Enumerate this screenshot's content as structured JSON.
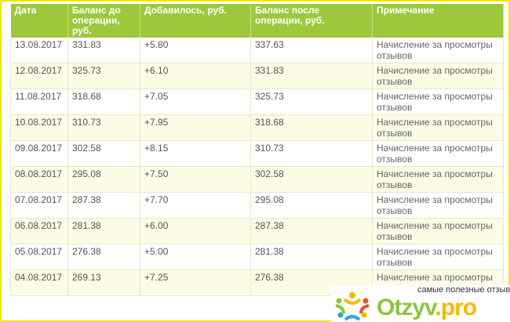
{
  "table": {
    "headers": [
      "Дата",
      "Баланс до операции, руб.",
      "Добавилось, руб.",
      "Баланс после операции, руб.",
      "Примечание"
    ],
    "rows": [
      [
        "13.08.2017",
        "331.83",
        "+5.80",
        "337.63",
        "Начисление за просмотры отзывов"
      ],
      [
        "12.08.2017",
        "325.73",
        "+6.10",
        "331.83",
        "Начисление за просмотры отзывов"
      ],
      [
        "11.08.2017",
        "318.68",
        "+7.05",
        "325.73",
        "Начисление за просмотры отзывов"
      ],
      [
        "10.08.2017",
        "310.73",
        "+7.95",
        "318.68",
        "Начисление за просмотры отзывов"
      ],
      [
        "09.08.2017",
        "302.58",
        "+8.15",
        "310.73",
        "Начисление за просмотры отзывов"
      ],
      [
        "08.08.2017",
        "295.08",
        "+7.50",
        "302.58",
        "Начисление за просмотры отзывов"
      ],
      [
        "07.08.2017",
        "287.38",
        "+7.70",
        "295.08",
        "Начисление за просмотры отзывов"
      ],
      [
        "06.08.2017",
        "281.38",
        "+6.00",
        "287.38",
        "Начисление за просмотры отзывов"
      ],
      [
        "05.08.2017",
        "276.38",
        "+5.00",
        "281.38",
        "Начисление за просмотры отзывов"
      ],
      [
        "04.08.2017",
        "269.13",
        "+7.25",
        "276.38",
        "Начисление за просмотры отзывов"
      ]
    ]
  },
  "watermark": {
    "tagline": "самые полезные отзывы",
    "logo_main": "Otzyv",
    "logo_suffix": ".pro"
  },
  "colors": {
    "header": "#9cc93c",
    "alt_row": "#fbfbe6",
    "frame": "#f5e600"
  }
}
